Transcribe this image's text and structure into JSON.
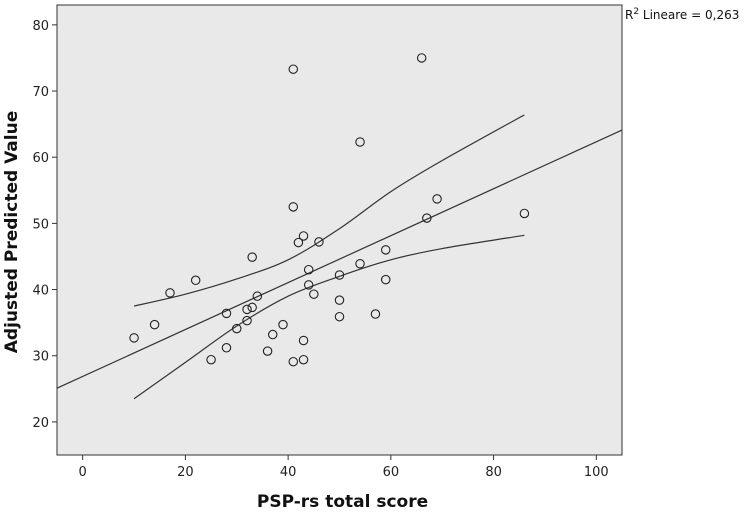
{
  "chart_data": {
    "type": "scatter",
    "title": "",
    "xlabel": "PSP-rs total score",
    "ylabel": "Adjusted Predicted Value",
    "xlim": [
      -5,
      105
    ],
    "ylim": [
      15,
      83
    ],
    "xticks": [
      0,
      20,
      40,
      60,
      80,
      100
    ],
    "yticks": [
      20,
      30,
      40,
      50,
      60,
      70,
      80
    ],
    "grid": false,
    "background": "#e9e9e9",
    "annotation": {
      "label": "R",
      "superscript": "2",
      "text": " Lineare = 0,263"
    },
    "points": [
      {
        "x": 10,
        "y": 32.7
      },
      {
        "x": 14,
        "y": 34.7
      },
      {
        "x": 17,
        "y": 39.5
      },
      {
        "x": 22,
        "y": 41.4
      },
      {
        "x": 25,
        "y": 29.4
      },
      {
        "x": 28,
        "y": 31.2
      },
      {
        "x": 28,
        "y": 36.4
      },
      {
        "x": 30,
        "y": 34.1
      },
      {
        "x": 32,
        "y": 35.3
      },
      {
        "x": 32,
        "y": 37.0
      },
      {
        "x": 33,
        "y": 37.3
      },
      {
        "x": 33,
        "y": 44.9
      },
      {
        "x": 34,
        "y": 39.0
      },
      {
        "x": 36,
        "y": 30.7
      },
      {
        "x": 37,
        "y": 33.2
      },
      {
        "x": 39,
        "y": 34.7
      },
      {
        "x": 41,
        "y": 29.1
      },
      {
        "x": 41,
        "y": 52.5
      },
      {
        "x": 41,
        "y": 73.3
      },
      {
        "x": 42,
        "y": 47.1
      },
      {
        "x": 43,
        "y": 29.4
      },
      {
        "x": 43,
        "y": 32.3
      },
      {
        "x": 43,
        "y": 48.1
      },
      {
        "x": 44,
        "y": 40.7
      },
      {
        "x": 44,
        "y": 43.0
      },
      {
        "x": 45,
        "y": 39.3
      },
      {
        "x": 46,
        "y": 47.2
      },
      {
        "x": 50,
        "y": 35.9
      },
      {
        "x": 50,
        "y": 38.4
      },
      {
        "x": 50,
        "y": 42.2
      },
      {
        "x": 54,
        "y": 43.9
      },
      {
        "x": 54,
        "y": 62.3
      },
      {
        "x": 57,
        "y": 36.3
      },
      {
        "x": 59,
        "y": 41.5
      },
      {
        "x": 59,
        "y": 46.0
      },
      {
        "x": 66,
        "y": 75.0
      },
      {
        "x": 67,
        "y": 50.8
      },
      {
        "x": 69,
        "y": 53.7
      },
      {
        "x": 86,
        "y": 51.5
      }
    ],
    "fit_line": [
      {
        "x": -5,
        "y": 25.1
      },
      {
        "x": 105,
        "y": 64.1
      }
    ],
    "ci_upper": [
      {
        "x": 10,
        "y": 37.5
      },
      {
        "x": 20,
        "y": 39.3
      },
      {
        "x": 30,
        "y": 41.6
      },
      {
        "x": 40,
        "y": 44.5
      },
      {
        "x": 50,
        "y": 49.2
      },
      {
        "x": 60,
        "y": 54.8
      },
      {
        "x": 70,
        "y": 59.5
      },
      {
        "x": 86,
        "y": 66.4
      }
    ],
    "ci_lower": [
      {
        "x": 10,
        "y": 23.5
      },
      {
        "x": 20,
        "y": 29.0
      },
      {
        "x": 30,
        "y": 34.5
      },
      {
        "x": 40,
        "y": 39.0
      },
      {
        "x": 50,
        "y": 42.0
      },
      {
        "x": 60,
        "y": 44.5
      },
      {
        "x": 70,
        "y": 46.2
      },
      {
        "x": 86,
        "y": 48.2
      }
    ]
  }
}
